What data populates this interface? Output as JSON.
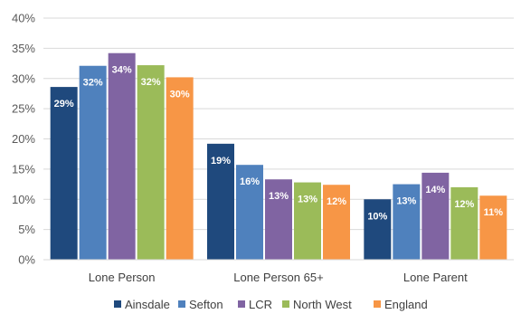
{
  "chart_data": {
    "type": "bar",
    "title": "",
    "xlabel": "",
    "ylabel": "",
    "categories": [
      "Lone Person",
      "Lone Person 65+",
      "Lone Parent"
    ],
    "series": [
      {
        "name": "Ainsdale",
        "color": "#1f497d",
        "values": [
          28.6,
          19.2,
          10.0
        ],
        "labels": [
          "29%",
          "19%",
          "10%"
        ]
      },
      {
        "name": "Sefton",
        "color": "#4f81bd",
        "values": [
          32.1,
          15.7,
          12.5
        ],
        "labels": [
          "32%",
          "16%",
          "13%"
        ]
      },
      {
        "name": "LCR",
        "color": "#8064a2",
        "values": [
          34.2,
          13.3,
          14.4
        ],
        "labels": [
          "34%",
          "13%",
          "14%"
        ]
      },
      {
        "name": "North West",
        "color": "#9bbb59",
        "values": [
          32.2,
          12.8,
          12.0
        ],
        "labels": [
          "32%",
          "13%",
          "12%"
        ]
      },
      {
        "name": "England",
        "color": "#f79646",
        "values": [
          30.2,
          12.4,
          10.6
        ],
        "labels": [
          "30%",
          "12%",
          "11%"
        ]
      }
    ],
    "ylim": [
      0,
      40
    ],
    "yticks": [
      "0%",
      "5%",
      "10%",
      "15%",
      "20%",
      "25%",
      "30%",
      "35%",
      "40%"
    ],
    "grid": true,
    "legend_position": "bottom"
  }
}
